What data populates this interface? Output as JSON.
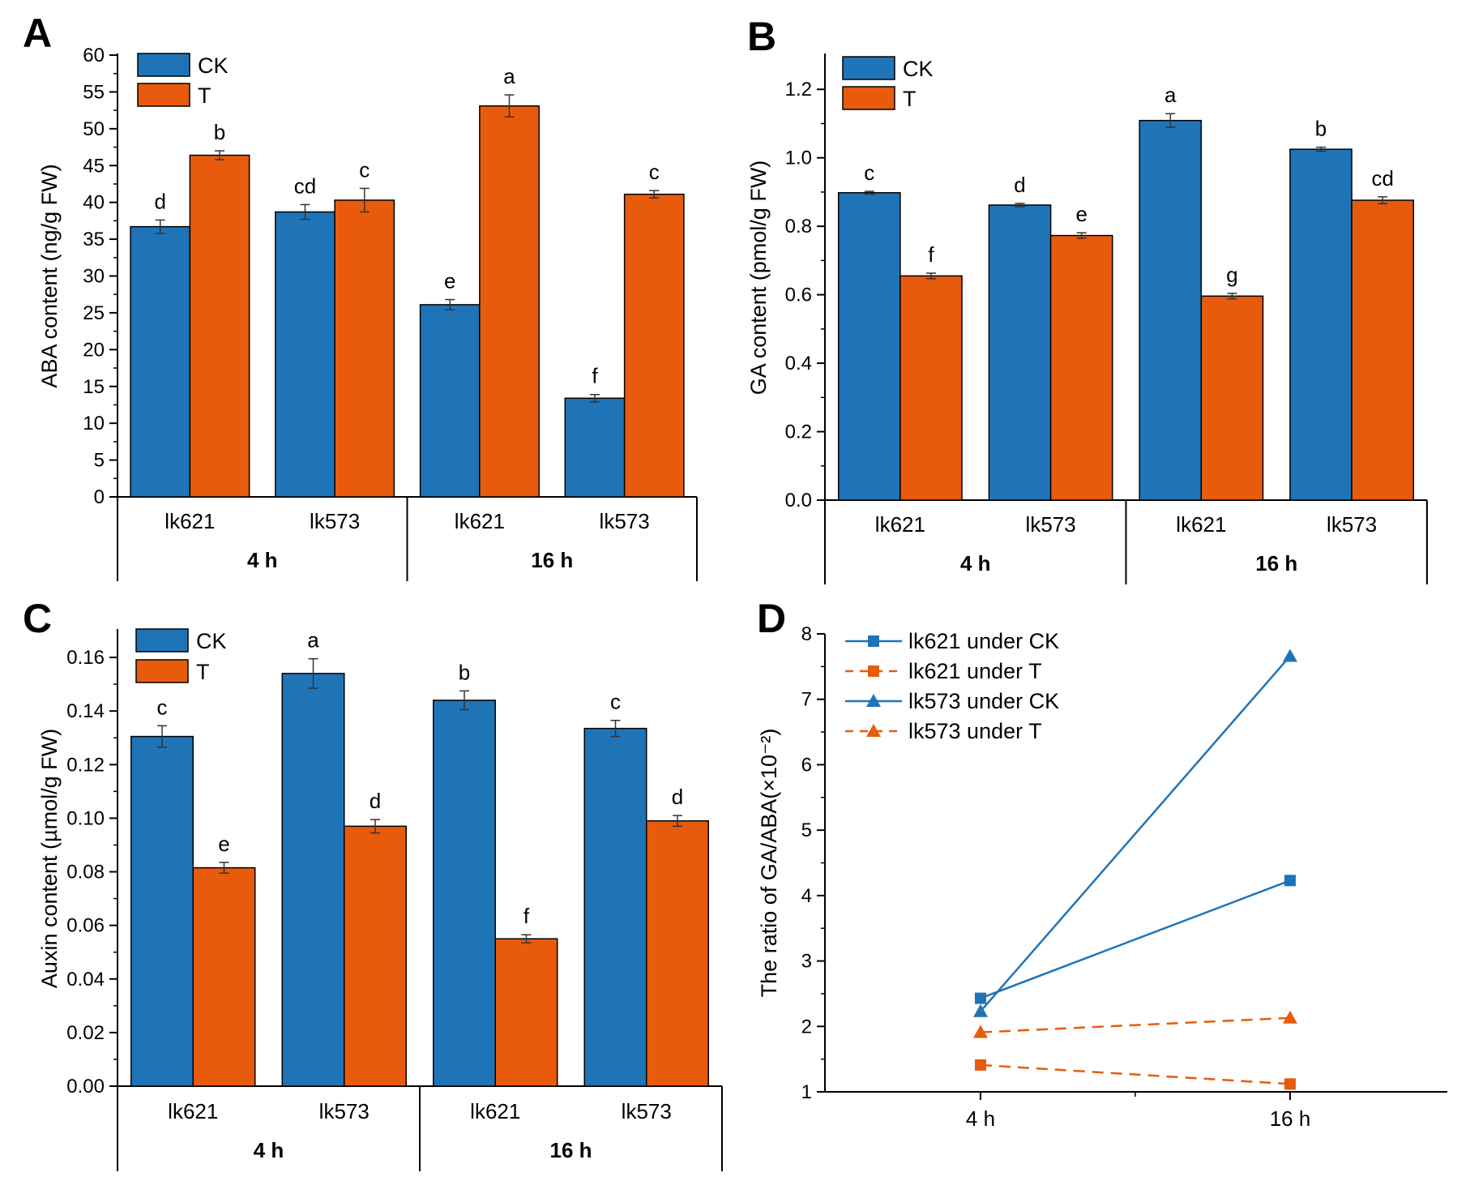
{
  "colors": {
    "ck": "#1F74B8",
    "t": "#E85B0C",
    "axis": "#000000"
  },
  "chart_data": [
    {
      "panel": "A",
      "type": "bar",
      "ylabel": "ABA content (ng/g FW)",
      "ylim": [
        0,
        60
      ],
      "yticks": [
        "0",
        "5",
        "10",
        "15",
        "20",
        "25",
        "30",
        "35",
        "40",
        "45",
        "50",
        "55",
        "60"
      ],
      "categories": [
        "lk621",
        "lk573",
        "lk621",
        "lk573"
      ],
      "groups": [
        "4 h",
        "16 h"
      ],
      "series": [
        {
          "name": "CK",
          "values": [
            36.7,
            38.7,
            26.1,
            13.4
          ],
          "errors": [
            0.9,
            1.0,
            0.7,
            0.5
          ],
          "labels": [
            "d",
            "cd",
            "e",
            "f"
          ]
        },
        {
          "name": "T",
          "values": [
            46.4,
            40.3,
            53.1,
            41.1
          ],
          "errors": [
            0.6,
            1.6,
            1.5,
            0.5
          ],
          "labels": [
            "b",
            "c",
            "a",
            "c"
          ]
        }
      ],
      "legend": "top-left"
    },
    {
      "panel": "B",
      "type": "bar",
      "ylabel": "GA content (pmol/g FW)",
      "ylim": [
        0,
        1.3
      ],
      "yticks": [
        "0.0",
        "0.2",
        "0.4",
        "0.6",
        "0.8",
        "1.0",
        "1.2"
      ],
      "categories": [
        "lk621",
        "lk573",
        "lk621",
        "lk573"
      ],
      "groups": [
        "4 h",
        "16 h"
      ],
      "series": [
        {
          "name": "CK",
          "values": [
            0.898,
            0.862,
            1.109,
            1.025
          ],
          "errors": [
            0.004,
            0.005,
            0.02,
            0.006
          ],
          "labels": [
            "c",
            "d",
            "a",
            "b"
          ]
        },
        {
          "name": "T",
          "values": [
            0.655,
            0.773,
            0.596,
            0.876
          ],
          "errors": [
            0.008,
            0.008,
            0.008,
            0.01
          ],
          "labels": [
            "f",
            "e",
            "g",
            "cd"
          ]
        }
      ],
      "legend": "top-left"
    },
    {
      "panel": "C",
      "type": "bar",
      "ylabel": "Auxin content (µmol/g FW)",
      "ylim": [
        0,
        0.17
      ],
      "yticks": [
        "0.00",
        "0.02",
        "0.04",
        "0.06",
        "0.08",
        "0.10",
        "0.12",
        "0.14",
        "0.16"
      ],
      "categories": [
        "lk621",
        "lk573",
        "lk621",
        "lk573"
      ],
      "groups": [
        "4 h",
        "16 h"
      ],
      "series": [
        {
          "name": "CK",
          "values": [
            0.1305,
            0.154,
            0.144,
            0.1335
          ],
          "errors": [
            0.004,
            0.0055,
            0.0035,
            0.003
          ],
          "labels": [
            "c",
            "a",
            "b",
            "c"
          ]
        },
        {
          "name": "T",
          "values": [
            0.0815,
            0.097,
            0.055,
            0.099
          ],
          "errors": [
            0.002,
            0.0025,
            0.0015,
            0.002
          ],
          "labels": [
            "e",
            "d",
            "f",
            "d"
          ]
        }
      ],
      "legend": "top-left"
    },
    {
      "panel": "D",
      "type": "line",
      "ylabel": "The ratio of GA/ABA(×10⁻²)",
      "ylim": [
        1,
        8
      ],
      "yticks": [
        "1",
        "2",
        "3",
        "4",
        "5",
        "6",
        "7",
        "8"
      ],
      "x": [
        "4 h",
        "16 h"
      ],
      "series": [
        {
          "name": "lk621 under CK",
          "values": [
            2.43,
            4.23
          ],
          "marker": "square",
          "style": "solid",
          "color": "ck"
        },
        {
          "name": "lk621 under T",
          "values": [
            1.41,
            1.12
          ],
          "marker": "square",
          "style": "dashed",
          "color": "t"
        },
        {
          "name": "lk573 under CK",
          "values": [
            2.23,
            7.66
          ],
          "marker": "triangle",
          "style": "solid",
          "color": "ck"
        },
        {
          "name": "lk573 under T",
          "values": [
            1.91,
            2.13
          ],
          "marker": "triangle",
          "style": "dashed",
          "color": "t"
        }
      ],
      "legend": "top-left"
    }
  ]
}
